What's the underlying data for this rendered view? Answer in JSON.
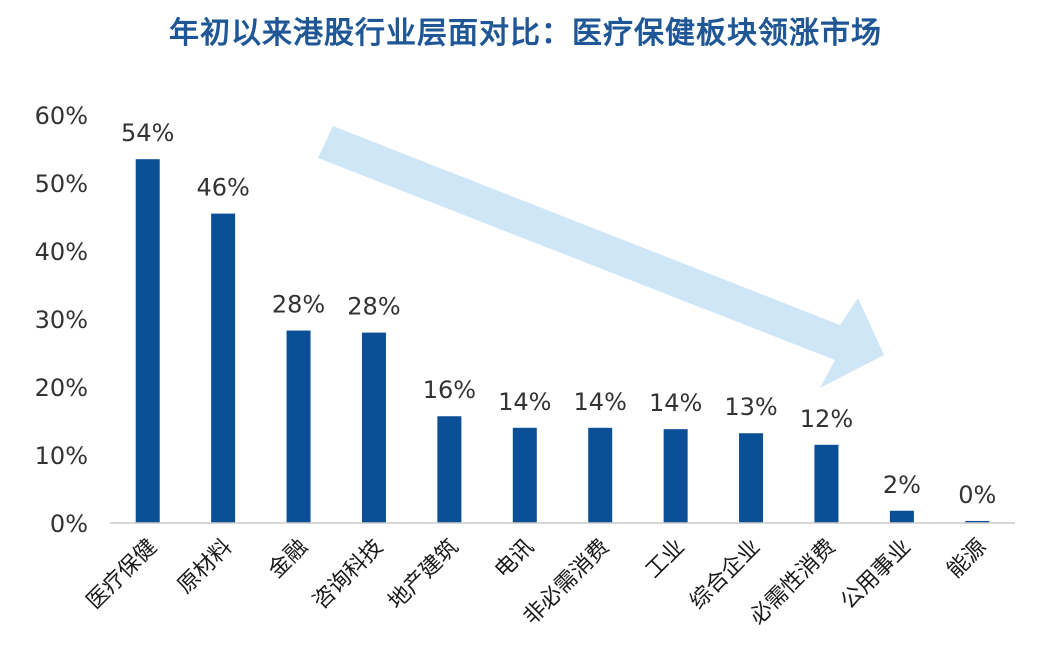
{
  "title": "年初以来港股行业层面对比：医疗保健板块领涨市场",
  "chart_data": {
    "type": "bar",
    "categories": [
      "医疗保健",
      "原材料",
      "金融",
      "咨询科技",
      "地产建筑",
      "电讯",
      "非必需消费",
      "工业",
      "综合企业",
      "必需性消费",
      "公用事业",
      "能源"
    ],
    "values": [
      54,
      46,
      28,
      28,
      16,
      14,
      14,
      14,
      13,
      12,
      2,
      0
    ],
    "data_labels": [
      "54%",
      "46%",
      "28%",
      "28%",
      "16%",
      "14%",
      "14%",
      "14%",
      "13%",
      "12%",
      "2%",
      "0%"
    ],
    "plot_values": [
      53.5,
      45.5,
      28.3,
      28.0,
      15.7,
      14.0,
      14.0,
      13.8,
      13.2,
      11.5,
      1.8,
      0.3
    ],
    "yticks": [
      "0%",
      "10%",
      "20%",
      "30%",
      "40%",
      "50%",
      "60%"
    ],
    "ylim": [
      0,
      60
    ],
    "grid": false,
    "colors": {
      "bar": "#0b4f96",
      "arrow": "#cfe6f7",
      "title": "#1f5796",
      "axis": "#cccccc"
    }
  }
}
